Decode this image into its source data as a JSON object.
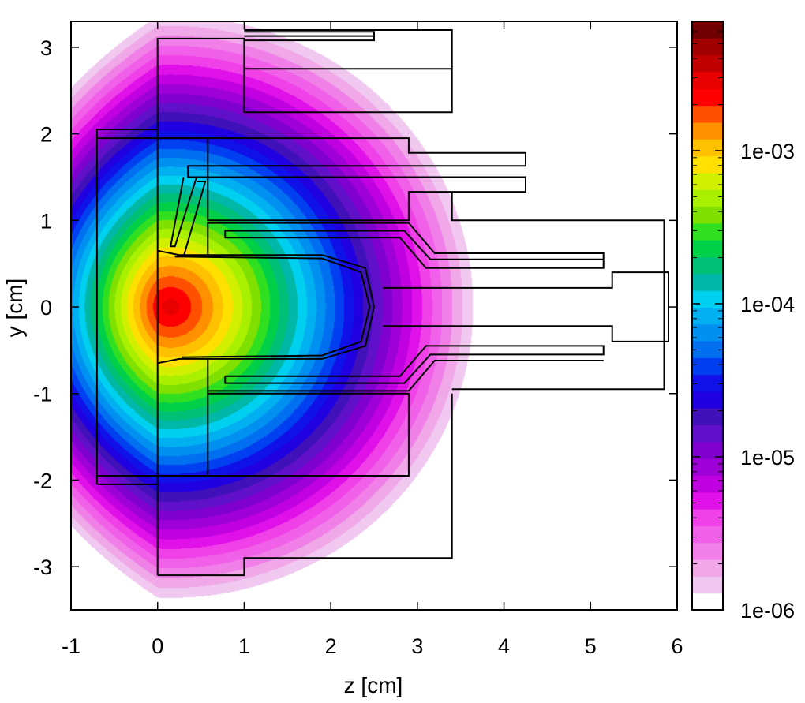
{
  "chart_data": {
    "type": "heatmap",
    "title": "",
    "xlabel": "z [cm]",
    "ylabel": "y [cm]",
    "xlim": [
      -1,
      6
    ],
    "ylim": [
      -3.5,
      3.3
    ],
    "x_ticks": [
      -1,
      0,
      1,
      2,
      3,
      4,
      5,
      6
    ],
    "x_tick_labels": [
      "-1",
      "0",
      "1",
      "2",
      "3",
      "4",
      "5",
      "6"
    ],
    "y_ticks": [
      -3,
      -2,
      -1,
      0,
      1,
      2,
      3
    ],
    "y_tick_labels": [
      "-3",
      "-2",
      "-1",
      "0",
      "1",
      "2",
      "3"
    ],
    "colorbar": {
      "scale": "log",
      "range": [
        1e-06,
        0.007
      ],
      "ticks": [
        1e-06,
        1e-05,
        0.0001,
        0.001
      ],
      "tick_labels": [
        "1e-06",
        "1e-05",
        "1e-04",
        "1e-03"
      ],
      "levels": 30,
      "colors": [
        "#ffffff",
        "#f0c8f0",
        "#f0a8e8",
        "#f080e8",
        "#f060e8",
        "#f040e8",
        "#e010e8",
        "#c000e0",
        "#a000d8",
        "#8000d0",
        "#6010c8",
        "#4010b8",
        "#2000e0",
        "#1010e8",
        "#0040f0",
        "#0070f0",
        "#0090f0",
        "#00b0f0",
        "#00d0f0",
        "#00b8a8",
        "#00c078",
        "#00d048",
        "#30e020",
        "#80e000",
        "#a8f000",
        "#d0f000",
        "#ffe000",
        "#ffc000",
        "#ff9000",
        "#ff5000",
        "#ff0000",
        "#e80000",
        "#c00000",
        "#a00000",
        "#700000"
      ]
    },
    "field": {
      "source_z": 0.15,
      "source_y": 0.0,
      "peak": 0.003,
      "decay_length_cm": 0.62,
      "wall_z": 0.0,
      "wall_attenuation_per_cm": 1.35
    },
    "geometry_outline": [
      [
        [
          0.0,
          -3.1
        ],
        [
          0.0,
          3.1
        ],
        [
          1.0,
          3.1
        ],
        [
          1.0,
          2.25
        ],
        [
          3.4,
          2.25
        ],
        [
          3.4,
          3.2
        ],
        [
          1.0,
          3.2
        ]
      ],
      [
        [
          1.0,
          2.75
        ],
        [
          3.4,
          2.75
        ]
      ],
      [
        [
          1.0,
          3.18
        ],
        [
          2.5,
          3.18
        ],
        [
          2.5,
          3.08
        ],
        [
          1.0,
          3.08
        ]
      ],
      [
        [
          1.0,
          3.13
        ],
        [
          2.5,
          3.13
        ]
      ],
      [
        [
          0.0,
          -3.1
        ],
        [
          1.0,
          -3.1
        ],
        [
          1.0,
          -2.9
        ],
        [
          3.4,
          -2.9
        ],
        [
          3.4,
          -1.0
        ]
      ],
      [
        [
          -0.7,
          -2.05
        ],
        [
          -0.7,
          2.05
        ],
        [
          0.0,
          2.05
        ]
      ],
      [
        [
          -0.7,
          -2.05
        ],
        [
          0.0,
          -2.05
        ]
      ],
      [
        [
          -0.7,
          1.95
        ],
        [
          0.0,
          1.95
        ]
      ],
      [
        [
          -0.7,
          -1.95
        ],
        [
          0.0,
          -1.95
        ]
      ],
      [
        [
          0.0,
          1.95
        ],
        [
          2.9,
          1.95
        ],
        [
          2.9,
          1.78
        ],
        [
          4.25,
          1.78
        ],
        [
          4.25,
          1.63
        ],
        [
          0.35,
          1.63
        ],
        [
          0.35,
          1.5
        ],
        [
          4.25,
          1.5
        ],
        [
          4.25,
          1.33
        ],
        [
          2.9,
          1.33
        ],
        [
          2.9,
          1.0
        ],
        [
          0.58,
          1.0
        ],
        [
          0.58,
          1.95
        ]
      ],
      [
        [
          0.58,
          0.6
        ],
        [
          0.58,
          0.97
        ],
        [
          2.9,
          0.97
        ],
        [
          3.2,
          0.62
        ],
        [
          5.15,
          0.62
        ],
        [
          5.15,
          0.45
        ],
        [
          3.1,
          0.45
        ],
        [
          2.8,
          0.8
        ],
        [
          0.78,
          0.8
        ],
        [
          0.78,
          0.88
        ],
        [
          2.85,
          0.88
        ],
        [
          3.15,
          0.55
        ],
        [
          5.15,
          0.55
        ]
      ],
      [
        [
          0.0,
          0.65
        ],
        [
          0.25,
          0.6
        ],
        [
          1.9,
          0.6
        ],
        [
          2.4,
          0.45
        ],
        [
          2.5,
          0.0
        ],
        [
          2.4,
          -0.45
        ],
        [
          1.9,
          -0.6
        ],
        [
          0.25,
          -0.6
        ],
        [
          0.0,
          -0.65
        ]
      ],
      [
        [
          0.28,
          0.58
        ],
        [
          1.9,
          0.56
        ],
        [
          2.35,
          0.4
        ],
        [
          2.45,
          0.0
        ],
        [
          2.35,
          -0.4
        ],
        [
          1.9,
          -0.56
        ],
        [
          0.28,
          -0.58
        ]
      ],
      [
        [
          0.58,
          -0.6
        ],
        [
          0.58,
          -1.95
        ],
        [
          2.9,
          -1.95
        ],
        [
          2.9,
          -1.0
        ],
        [
          0.58,
          -1.0
        ]
      ],
      [
        [
          0.78,
          -0.8
        ],
        [
          0.78,
          -0.88
        ],
        [
          2.85,
          -0.88
        ],
        [
          3.15,
          -0.55
        ],
        [
          5.15,
          -0.55
        ],
        [
          5.15,
          -0.45
        ],
        [
          3.1,
          -0.45
        ],
        [
          2.8,
          -0.8
        ],
        [
          0.78,
          -0.8
        ]
      ],
      [
        [
          0.58,
          -0.97
        ],
        [
          2.9,
          -0.97
        ],
        [
          3.2,
          -0.62
        ],
        [
          5.15,
          -0.62
        ]
      ],
      [
        [
          2.6,
          0.22
        ],
        [
          5.25,
          0.22
        ],
        [
          5.25,
          0.4
        ],
        [
          5.9,
          0.4
        ],
        [
          5.9,
          -0.4
        ],
        [
          5.25,
          -0.4
        ],
        [
          5.25,
          -0.22
        ],
        [
          2.6,
          -0.22
        ]
      ],
      [
        [
          3.4,
          1.33
        ],
        [
          3.4,
          1.0
        ],
        [
          5.85,
          1.0
        ],
        [
          5.85,
          -0.95
        ],
        [
          3.4,
          -0.95
        ]
      ],
      [
        [
          0.0,
          -1.95
        ],
        [
          2.9,
          -1.95
        ]
      ],
      [
        [
          0.3,
          1.5
        ],
        [
          0.15,
          0.7
        ],
        [
          0.2,
          0.7
        ],
        [
          0.45,
          1.5
        ]
      ],
      [
        [
          0.45,
          1.45
        ],
        [
          0.55,
          1.45
        ],
        [
          0.3,
          0.58
        ],
        [
          0.2,
          0.58
        ]
      ]
    ]
  }
}
